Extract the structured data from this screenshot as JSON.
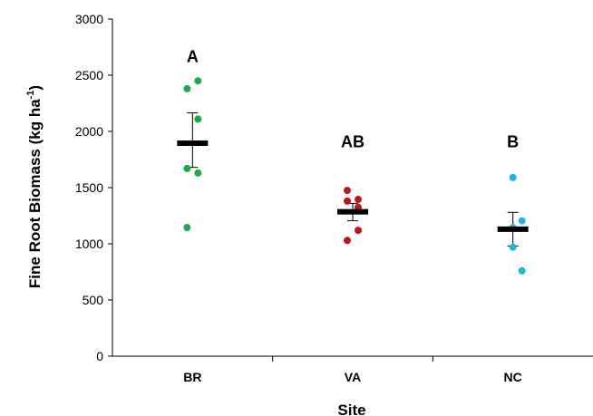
{
  "chart_data": {
    "type": "scatter",
    "title": "",
    "xlabel": "Site",
    "ylabel": "Fine Root Biomass (kg ha",
    "ylabel_sup": "-1",
    "ylabel_close": ")",
    "ylim": [
      0,
      3000
    ],
    "yticks": [
      0,
      500,
      1000,
      1500,
      2000,
      2500,
      3000
    ],
    "ytick_labels": [
      "0",
      "500",
      "1000",
      "1500",
      "2000",
      "2500",
      "3000"
    ],
    "categories": [
      "BR",
      "VA",
      "NC"
    ],
    "grid": false,
    "legend": "none",
    "groups": [
      {
        "category": "BR",
        "letter": "A",
        "color": "#1aaa4a",
        "points": [
          {
            "offset": -0.3,
            "value": 2380
          },
          {
            "offset": 0.3,
            "value": 2450
          },
          {
            "offset": 0.3,
            "value": 2110
          },
          {
            "offset": -0.3,
            "value": 1670
          },
          {
            "offset": 0.3,
            "value": 1630
          },
          {
            "offset": -0.3,
            "value": 1145
          }
        ],
        "mean": 1895,
        "error_upper": 2165,
        "error_lower": 1680
      },
      {
        "category": "VA",
        "letter": "AB",
        "color": "#c0141c",
        "points": [
          {
            "offset": -0.3,
            "value": 1475
          },
          {
            "offset": -0.3,
            "value": 1380
          },
          {
            "offset": 0.3,
            "value": 1395
          },
          {
            "offset": 0.3,
            "value": 1325
          },
          {
            "offset": -0.3,
            "value": 1030
          },
          {
            "offset": 0.3,
            "value": 1120
          }
        ],
        "mean": 1285,
        "error_upper": 1360,
        "error_lower": 1205
      },
      {
        "category": "NC",
        "letter": "B",
        "color": "#22b2e8",
        "points": [
          {
            "offset": 0.0,
            "value": 1590
          },
          {
            "offset": 0.0,
            "value": 1145
          },
          {
            "offset": 0.5,
            "value": 1205
          },
          {
            "offset": 0.0,
            "value": 970
          },
          {
            "offset": 0.5,
            "value": 760
          }
        ],
        "mean": 1130,
        "error_upper": 1280,
        "error_lower": 980
      }
    ]
  }
}
